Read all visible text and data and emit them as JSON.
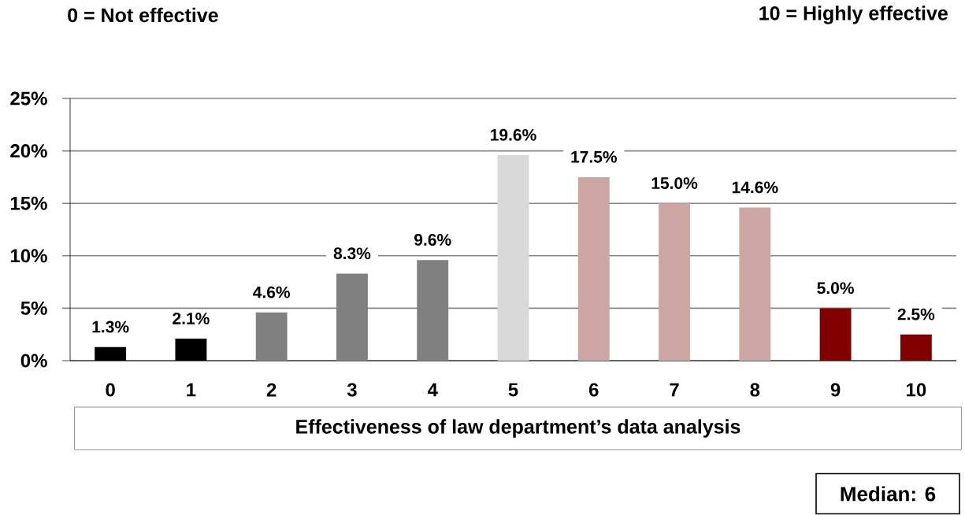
{
  "chart_data": {
    "type": "bar",
    "annotations": [
      "0 = Not effective",
      "10 = Highly effective",
      "Median: 6"
    ],
    "xlabel": "Effectiveness of law department’s data analysis",
    "categories": [
      "0",
      "1",
      "2",
      "3",
      "4",
      "5",
      "6",
      "7",
      "8",
      "9",
      "10"
    ],
    "values": [
      1.3,
      2.1,
      4.6,
      8.3,
      9.6,
      19.6,
      17.5,
      15.0,
      14.6,
      5.0,
      2.5
    ],
    "colors": [
      "#000000",
      "#000000",
      "#808080",
      "#808080",
      "#808080",
      "#d9d9d9",
      "#cca6a3",
      "#cca6a3",
      "#cca6a3",
      "#800000",
      "#800000"
    ],
    "value_labels": [
      "1.3%",
      "2.1%",
      "4.6%",
      "8.3%",
      "9.6%",
      "19.6%",
      "17.5%",
      "15.0%",
      "14.6%",
      "5.0%",
      "2.5%"
    ],
    "ylim": [
      0,
      25
    ],
    "yticks": [
      {
        "value": 0,
        "label": "0%"
      },
      {
        "value": 5,
        "label": "5%"
      },
      {
        "value": 10,
        "label": "10%"
      },
      {
        "value": 15,
        "label": "15%"
      },
      {
        "value": 20,
        "label": "20%"
      },
      {
        "value": 25,
        "label": "25%"
      }
    ],
    "grid": "y"
  }
}
